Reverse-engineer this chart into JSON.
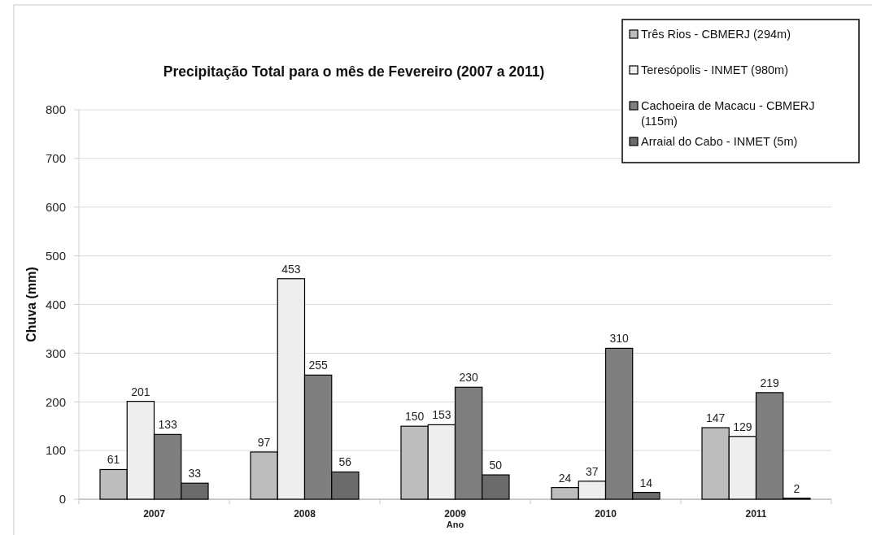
{
  "chart_data": {
    "type": "bar",
    "title": "Precipitação Total para o mês de Fevereiro (2007 a 2011)",
    "xlabel": "Ano",
    "ylabel": "Chuva (mm)",
    "categories": [
      "2007",
      "2008",
      "2009",
      "2010",
      "2011"
    ],
    "series": [
      {
        "name": "Três Rios - CBMERJ (294m)",
        "color": "#bdbdbd",
        "values": [
          61,
          97,
          150,
          24,
          147
        ]
      },
      {
        "name": "Teresópolis - INMET (980m)",
        "color": "#eeeeee",
        "values": [
          201,
          453,
          153,
          37,
          129
        ]
      },
      {
        "name": "Cachoeira de Macacu - CBMERJ (115m)",
        "color": "#7f7f7f",
        "values": [
          133,
          255,
          230,
          310,
          219
        ]
      },
      {
        "name": "Arraial do Cabo - INMET (5m)",
        "color": "#6b6b6b",
        "values": [
          33,
          56,
          50,
          14,
          2
        ]
      }
    ],
    "ylim": [
      0,
      800
    ],
    "yticks": [
      0,
      100,
      200,
      300,
      400,
      500,
      600,
      700,
      800
    ],
    "grid": "y",
    "legend": "top right",
    "data_labels": true
  }
}
